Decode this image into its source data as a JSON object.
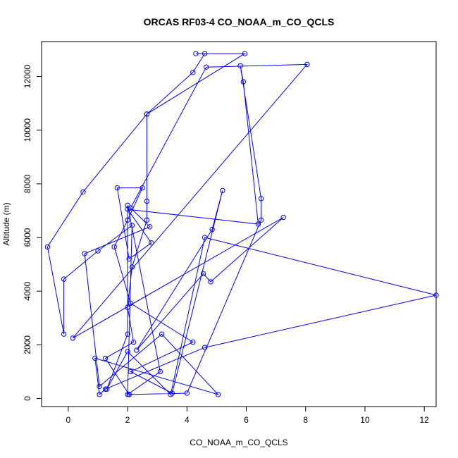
{
  "chart_data": {
    "type": "line",
    "title": "ORCAS RF03-4 CO_NOAA_m_CO_QCLS",
    "xlabel": "CO_NOAA_m_CO_QCLS",
    "ylabel": "Altitude (m)",
    "xlim": [
      -0.9,
      12.4
    ],
    "ylim": [
      -300,
      13300
    ],
    "xticks": [
      0,
      2,
      4,
      6,
      8,
      10,
      12
    ],
    "yticks": [
      0,
      2000,
      4000,
      6000,
      8000,
      10000,
      12000
    ],
    "xtick_labels": [
      "0",
      "2",
      "4",
      "6",
      "8",
      "10",
      "12"
    ],
    "ytick_labels": [
      "0",
      "2000",
      "4000",
      "6000",
      "8000",
      "10000",
      "12000"
    ],
    "line_color": "#0000ff",
    "marker": "open-circle",
    "grid": false,
    "series": [
      {
        "x": [
          4.3,
          5.95,
          2.65,
          2.65,
          2.65,
          2.15,
          2.0,
          2.2,
          1.25,
          2.05,
          2.05,
          4.0,
          6.5,
          6.5,
          5.8,
          5.9,
          6.4,
          2.0,
          2.8,
          2.05,
          1.65,
          2.5,
          2.0,
          1.55,
          2.1,
          4.2,
          2.1,
          3.5,
          5.2,
          4.85,
          2.3,
          4.55,
          4.8,
          7.25,
          0.15,
          8.05,
          4.65,
          2.1,
          2.75,
          0.55,
          1.05,
          3.15,
          5.05,
          0.9,
          1.05,
          1.25,
          4.6,
          12.4,
          4.6,
          3.45,
          2.0,
          1.3,
          2.0,
          2.0,
          3.1,
          2.0,
          2.15,
          1.0,
          -0.15,
          -0.15,
          -0.7,
          0.5,
          2.65,
          4.2,
          4.6
        ],
        "y": [
          12850,
          12850,
          10600,
          7350,
          6650,
          4900,
          3400,
          2100,
          1500,
          150,
          150,
          200,
          6650,
          7450,
          12400,
          11800,
          6500,
          7050,
          5800,
          5200,
          7850,
          7850,
          6650,
          5650,
          3550,
          2100,
          1000,
          200,
          7750,
          6300,
          1800,
          4650,
          4350,
          6750,
          2250,
          12450,
          12350,
          7100,
          6400,
          5400,
          450,
          2400,
          150,
          1500,
          150,
          350,
          1900,
          3850,
          6000,
          150,
          1750,
          350,
          2400,
          7200,
          1000,
          150,
          6450,
          5500,
          4450,
          2400,
          5650,
          7700,
          10600,
          12150,
          12850
        ]
      }
    ]
  }
}
